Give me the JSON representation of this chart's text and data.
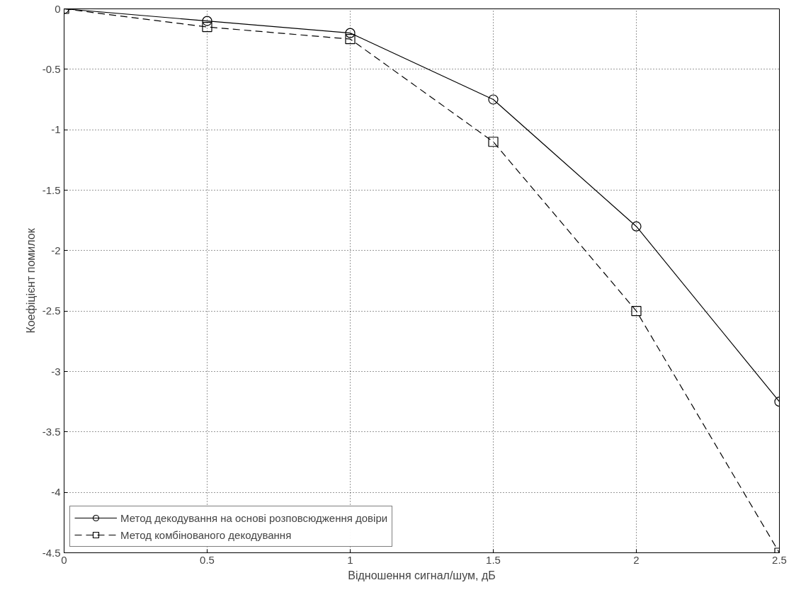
{
  "chart_data": {
    "type": "line",
    "xlabel": "Відношення сигнал/шум, дБ",
    "ylabel": "Коефіцієнт помилок",
    "x": [
      0,
      0.5,
      1,
      1.5,
      2,
      2.5
    ],
    "series": [
      {
        "name": "Метод декодування на основі розповсюдження довіри",
        "color": "#000000",
        "marker": "circle",
        "line_style": "solid",
        "values": [
          0,
          -0.1,
          -0.2,
          -0.75,
          -1.8,
          -3.25
        ]
      },
      {
        "name": "Метод комбінованого декодування",
        "color": "#000000",
        "marker": "square",
        "line_style": "dashed",
        "values": [
          0,
          -0.15,
          -0.25,
          -1.1,
          -2.5,
          -4.5
        ]
      }
    ],
    "xlim": [
      0,
      2.5
    ],
    "xticks": [
      0,
      0.5,
      1,
      1.5,
      2,
      2.5
    ],
    "ylim": [
      -4.5,
      0
    ],
    "yticks": [
      -4.5,
      -4,
      -3.5,
      -3,
      -2.5,
      -2,
      -1.5,
      -1,
      -0.5,
      0
    ],
    "grid": true,
    "legend": "bottom left"
  }
}
